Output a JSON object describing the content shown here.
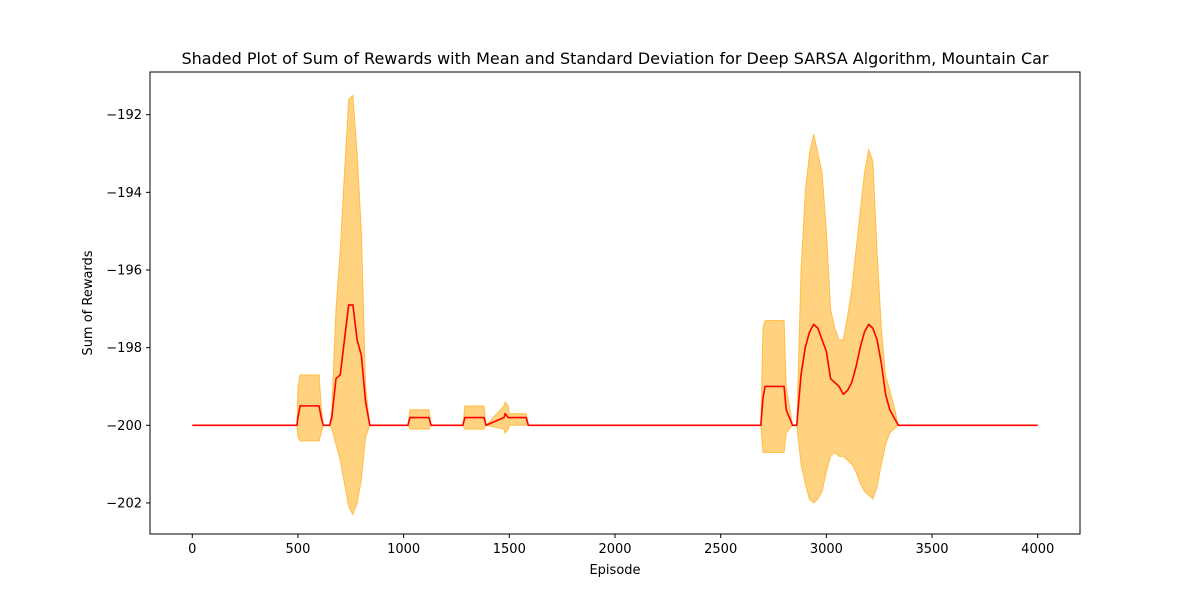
{
  "chart_data": {
    "type": "area",
    "title": "Shaded Plot of Sum of Rewards with Mean and Standard Deviation for Deep SARSA Algorithm, Mountain Car",
    "xlabel": "Episode",
    "ylabel": "Sum of Rewards",
    "xlim": [
      -200,
      4200
    ],
    "ylim": [
      -202.8,
      -190.9
    ],
    "xticks": [
      0,
      500,
      1000,
      1500,
      2000,
      2500,
      3000,
      3500,
      4000
    ],
    "xtick_labels": [
      "0",
      "500",
      "1000",
      "1500",
      "2000",
      "2500",
      "3000",
      "3500",
      "4000"
    ],
    "yticks": [
      -202,
      -200,
      -198,
      -196,
      -194,
      -192
    ],
    "ytick_labels": [
      "−202",
      "−200",
      "−198",
      "−196",
      "−194",
      "−192"
    ],
    "grid": false,
    "colors": {
      "mean": "#ff0000",
      "band": "#ffa500"
    },
    "mean": {
      "x": [
        0,
        495,
        500,
        510,
        600,
        610,
        620,
        650,
        660,
        680,
        700,
        720,
        740,
        760,
        780,
        800,
        820,
        840,
        1020,
        1030,
        1120,
        1130,
        1280,
        1290,
        1380,
        1390,
        1475,
        1480,
        1495,
        1500,
        1580,
        1590,
        2690,
        2700,
        2710,
        2800,
        2810,
        2840,
        2860,
        2880,
        2900,
        2920,
        2940,
        2960,
        2980,
        3000,
        3020,
        3040,
        3060,
        3080,
        3100,
        3120,
        3140,
        3160,
        3180,
        3200,
        3220,
        3240,
        3260,
        3280,
        3300,
        3320,
        3340,
        4000
      ],
      "y": [
        -200,
        -200,
        -199.8,
        -199.5,
        -199.5,
        -199.8,
        -200,
        -200,
        -199.8,
        -198.8,
        -198.7,
        -197.8,
        -196.9,
        -196.9,
        -197.8,
        -198.2,
        -199.4,
        -200,
        -200,
        -199.8,
        -199.8,
        -200,
        -200,
        -199.8,
        -199.8,
        -200,
        -199.8,
        -199.7,
        -199.8,
        -199.8,
        -199.8,
        -200,
        -200,
        -199.3,
        -199.0,
        -199.0,
        -199.6,
        -200,
        -200,
        -198.7,
        -198.0,
        -197.6,
        -197.4,
        -197.5,
        -197.8,
        -198.1,
        -198.8,
        -198.9,
        -199.0,
        -199.2,
        -199.1,
        -198.9,
        -198.5,
        -198.0,
        -197.6,
        -197.4,
        -197.5,
        -197.8,
        -198.4,
        -199.2,
        -199.6,
        -199.8,
        -200,
        -200
      ]
    },
    "band": {
      "x": [
        0,
        495,
        500,
        510,
        600,
        610,
        620,
        650,
        660,
        680,
        700,
        720,
        740,
        760,
        780,
        800,
        820,
        840,
        1020,
        1030,
        1120,
        1130,
        1280,
        1290,
        1380,
        1390,
        1475,
        1480,
        1495,
        1500,
        1580,
        1590,
        2690,
        2700,
        2710,
        2800,
        2810,
        2840,
        2860,
        2880,
        2900,
        2920,
        2940,
        2960,
        2980,
        3000,
        3020,
        3040,
        3060,
        3080,
        3100,
        3120,
        3140,
        3160,
        3180,
        3200,
        3220,
        3240,
        3260,
        3280,
        3300,
        3320,
        3340,
        4000
      ],
      "upper": [
        -200,
        -200,
        -199.0,
        -198.7,
        -198.7,
        -199.5,
        -200,
        -200,
        -199.6,
        -197.0,
        -195.5,
        -193.5,
        -191.6,
        -191.5,
        -193.0,
        -195.0,
        -199.0,
        -200,
        -200,
        -199.6,
        -199.6,
        -200,
        -200,
        -199.5,
        -199.5,
        -200,
        -199.5,
        -199.4,
        -199.5,
        -199.7,
        -199.7,
        -200,
        -200,
        -197.5,
        -197.3,
        -197.3,
        -199.0,
        -200,
        -200,
        -196.0,
        -194.0,
        -193.0,
        -192.5,
        -193.0,
        -193.5,
        -195.0,
        -197.0,
        -197.5,
        -197.8,
        -197.8,
        -197.2,
        -196.5,
        -195.5,
        -194.5,
        -193.5,
        -192.9,
        -193.2,
        -195.5,
        -197.5,
        -198.7,
        -199.1,
        -199.5,
        -200,
        -200
      ],
      "lower": [
        -200,
        -200,
        -200.3,
        -200.4,
        -200.4,
        -200.2,
        -200,
        -200,
        -200.1,
        -200.5,
        -200.9,
        -201.5,
        -202.1,
        -202.3,
        -202.0,
        -201.4,
        -200.3,
        -200,
        -200,
        -200.1,
        -200.1,
        -200,
        -200,
        -200.1,
        -200.1,
        -200,
        -200.1,
        -200.2,
        -200.1,
        -200.0,
        -200.0,
        -200,
        -200,
        -200.7,
        -200.7,
        -200.7,
        -200.2,
        -200,
        -200,
        -201.0,
        -201.5,
        -201.9,
        -202.0,
        -201.9,
        -201.7,
        -201.2,
        -200.8,
        -200.7,
        -200.8,
        -200.8,
        -200.9,
        -201.0,
        -201.2,
        -201.5,
        -201.7,
        -201.8,
        -201.9,
        -201.6,
        -201.0,
        -200.5,
        -200.2,
        -200.1,
        -200,
        -200
      ]
    }
  }
}
